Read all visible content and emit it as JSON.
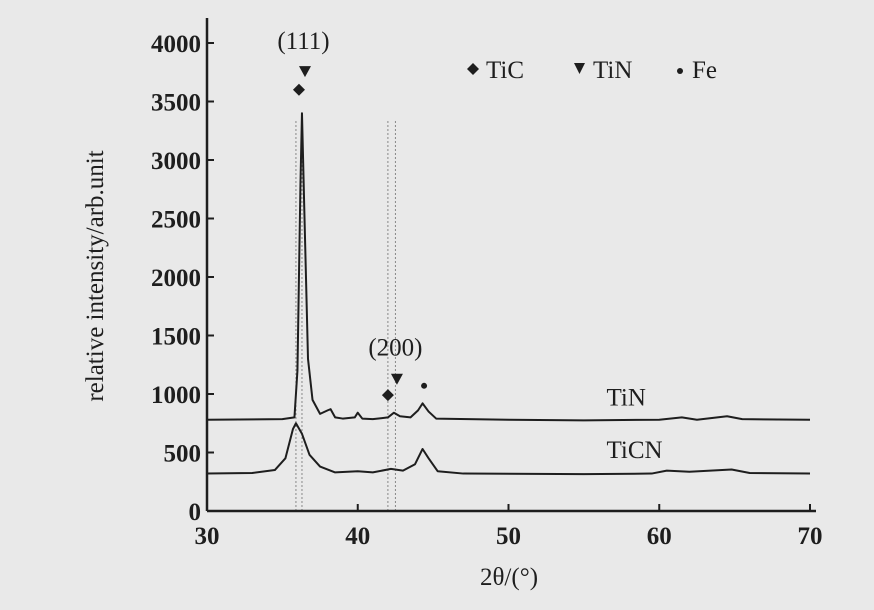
{
  "chart_data": {
    "type": "line",
    "title": "",
    "xlabel": "2θ/(°)",
    "ylabel": "relative intensity/arb.unit",
    "xlim": [
      30,
      70
    ],
    "ylim": [
      0,
      4000
    ],
    "xticks": [
      30,
      40,
      50,
      60,
      70
    ],
    "yticks": [
      0,
      500,
      1000,
      1500,
      2000,
      2500,
      3000,
      3500,
      4000
    ],
    "grid": false,
    "legend": {
      "placement": "top-right",
      "entries": [
        {
          "symbol": "diamond",
          "label": "TiC"
        },
        {
          "symbol": "triangle-down",
          "label": "TiN"
        },
        {
          "symbol": "dot",
          "label": "Fe"
        }
      ]
    },
    "series": [
      {
        "name": "TiN",
        "label_at": [
          56.5,
          970
        ],
        "points": [
          [
            30,
            780
          ],
          [
            35,
            785
          ],
          [
            35.8,
            800
          ],
          [
            36.0,
            1200
          ],
          [
            36.2,
            2800
          ],
          [
            36.3,
            3400
          ],
          [
            36.45,
            2600
          ],
          [
            36.7,
            1300
          ],
          [
            37,
            950
          ],
          [
            37.5,
            830
          ],
          [
            38.0,
            860
          ],
          [
            38.2,
            870
          ],
          [
            38.5,
            800
          ],
          [
            39,
            790
          ],
          [
            39.8,
            800
          ],
          [
            40,
            840
          ],
          [
            40.3,
            790
          ],
          [
            41,
            785
          ],
          [
            42,
            800
          ],
          [
            42.4,
            840
          ],
          [
            42.8,
            810
          ],
          [
            43.5,
            800
          ],
          [
            44,
            860
          ],
          [
            44.3,
            920
          ],
          [
            44.7,
            850
          ],
          [
            45.2,
            790
          ],
          [
            50,
            780
          ],
          [
            55,
            775
          ],
          [
            60,
            780
          ],
          [
            61.5,
            800
          ],
          [
            62.5,
            780
          ],
          [
            64.5,
            810
          ],
          [
            65.5,
            785
          ],
          [
            70,
            780
          ]
        ]
      },
      {
        "name": "TiCN",
        "label_at": [
          56.5,
          520
        ],
        "points": [
          [
            30,
            320
          ],
          [
            33,
            325
          ],
          [
            34.5,
            350
          ],
          [
            35.2,
            450
          ],
          [
            35.7,
            700
          ],
          [
            35.9,
            750
          ],
          [
            36.3,
            660
          ],
          [
            36.8,
            480
          ],
          [
            37.5,
            380
          ],
          [
            38.5,
            330
          ],
          [
            40,
            340
          ],
          [
            41,
            330
          ],
          [
            42.2,
            360
          ],
          [
            43,
            345
          ],
          [
            43.8,
            400
          ],
          [
            44.3,
            530
          ],
          [
            44.7,
            450
          ],
          [
            45.3,
            340
          ],
          [
            47,
            320
          ],
          [
            55,
            315
          ],
          [
            59.5,
            320
          ],
          [
            60.5,
            345
          ],
          [
            62,
            335
          ],
          [
            64.8,
            355
          ],
          [
            66,
            325
          ],
          [
            70,
            320
          ]
        ]
      }
    ],
    "reference_lines_x": [
      35.9,
      36.3,
      42.0,
      42.5
    ],
    "annotations": [
      {
        "text": "(111)",
        "x": 36.4,
        "y": 3950
      },
      {
        "text": "(200)",
        "x": 42.5,
        "y": 1330
      }
    ],
    "markers": [
      {
        "symbol": "diamond",
        "phase": "TiC",
        "x": 36.1,
        "y": 3600
      },
      {
        "symbol": "triangle-down",
        "phase": "TiN",
        "x": 36.5,
        "y": 3760
      },
      {
        "symbol": "diamond",
        "phase": "TiC",
        "x": 42.0,
        "y": 990
      },
      {
        "symbol": "triangle-down",
        "phase": "TiN",
        "x": 42.6,
        "y": 1130
      },
      {
        "symbol": "dot",
        "phase": "Fe",
        "x": 44.4,
        "y": 1070
      }
    ]
  }
}
